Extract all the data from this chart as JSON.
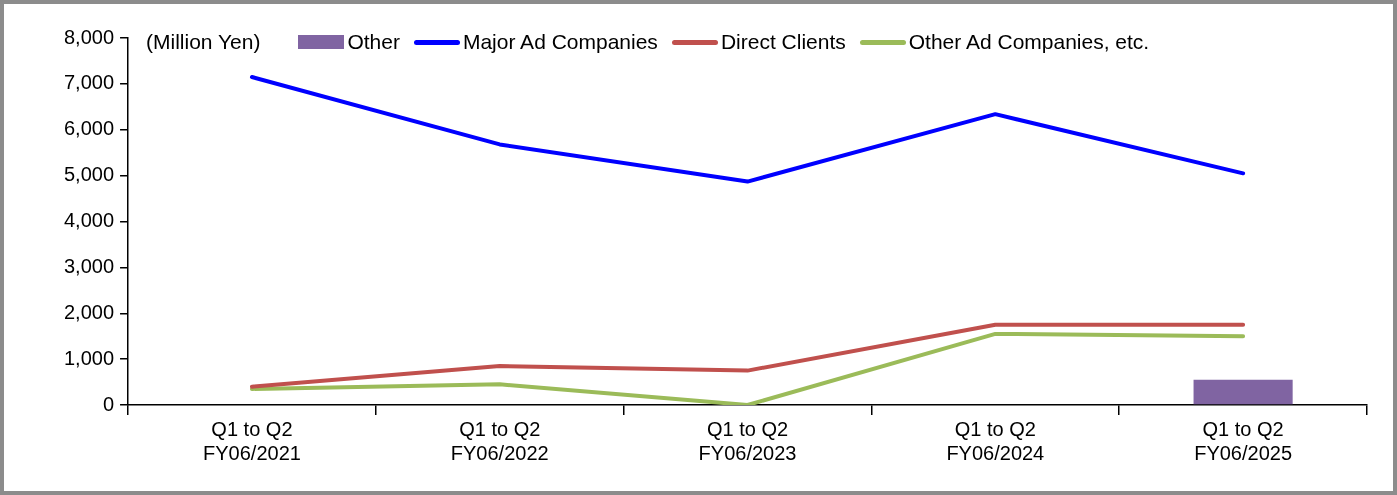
{
  "chart_data": {
    "type": "line",
    "ylabel": "(Million Yen)",
    "categories": [
      "Q1 to Q2\nFY06/2021",
      "Q1 to Q2\nFY06/2022",
      "Q1 to Q2\nFY06/2023",
      "Q1 to Q2\nFY06/2024",
      "Q1 to Q2\nFY06/2025"
    ],
    "series": [
      {
        "name": "Other",
        "type": "bar",
        "color": "#8064a2",
        "values": [
          null,
          null,
          null,
          null,
          550
        ]
      },
      {
        "name": "Major Ad Companies",
        "color": "#0000ff",
        "values": [
          7150,
          5680,
          4870,
          6340,
          5050
        ]
      },
      {
        "name": "Direct Clients",
        "color": "#c0504d",
        "values": [
          400,
          850,
          750,
          1750,
          1750
        ]
      },
      {
        "name": "Other Ad Companies, etc.",
        "color": "#9bbb59",
        "values": [
          350,
          450,
          0,
          1550,
          1500
        ]
      }
    ],
    "ylim": [
      0,
      8000
    ],
    "yticks": [
      {
        "value": 0,
        "label": "0"
      },
      {
        "value": 1000,
        "label": "1,000"
      },
      {
        "value": 2000,
        "label": "2,000"
      },
      {
        "value": 3000,
        "label": "3,000"
      },
      {
        "value": 4000,
        "label": "4,000"
      },
      {
        "value": 5000,
        "label": "5,000"
      },
      {
        "value": 6000,
        "label": "6,000"
      },
      {
        "value": 7000,
        "label": "7,000"
      },
      {
        "value": 8000,
        "label": "8,000"
      }
    ],
    "grid": false,
    "legend": "top",
    "marker": "none",
    "line_style": "solid"
  }
}
